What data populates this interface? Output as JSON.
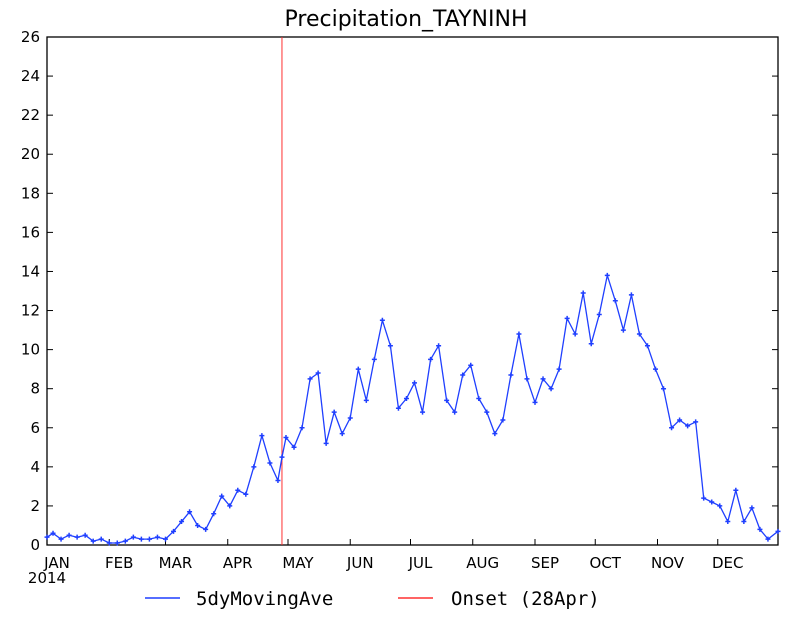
{
  "chart_data": {
    "type": "line",
    "title": "Precipitation_TAYNINH",
    "xlabel": "",
    "ylabel": "",
    "year_label": "2014",
    "x_tick_labels": [
      "JAN",
      "FEB",
      "MAR",
      "APR",
      "MAY",
      "JUN",
      "JUL",
      "AUG",
      "SEP",
      "OCT",
      "NOV",
      "DEC"
    ],
    "y_ticks": [
      0,
      2,
      4,
      6,
      8,
      10,
      12,
      14,
      16,
      18,
      20,
      22,
      24,
      26
    ],
    "ylim": [
      0,
      26
    ],
    "xlim_days": [
      1,
      365
    ],
    "grid": false,
    "legend_position": "bottom",
    "colors": {
      "series": "#1f3fff",
      "onset": "#ff3030"
    },
    "series": [
      {
        "name": "5dyMovingAve",
        "x_day_of_year": [
          1,
          4,
          8,
          12,
          16,
          20,
          24,
          28,
          32,
          36,
          40,
          44,
          48,
          52,
          56,
          60,
          64,
          68,
          72,
          76,
          80,
          84,
          88,
          92,
          96,
          100,
          104,
          108,
          112,
          116,
          118,
          120,
          124,
          128,
          132,
          136,
          140,
          144,
          148,
          152,
          156,
          160,
          164,
          168,
          172,
          176,
          180,
          184,
          188,
          192,
          196,
          200,
          204,
          208,
          212,
          216,
          220,
          224,
          228,
          232,
          236,
          240,
          244,
          248,
          252,
          256,
          260,
          264,
          268,
          272,
          276,
          280,
          284,
          288,
          292,
          296,
          300,
          304,
          308,
          312,
          316,
          320,
          324,
          328,
          332,
          336,
          340,
          344,
          348,
          352,
          356,
          360,
          365
        ],
        "values": [
          0.4,
          0.6,
          0.3,
          0.5,
          0.4,
          0.5,
          0.2,
          0.3,
          0.1,
          0.1,
          0.2,
          0.4,
          0.3,
          0.3,
          0.4,
          0.3,
          0.7,
          1.2,
          1.7,
          1.0,
          0.8,
          1.6,
          2.5,
          2.0,
          2.8,
          2.6,
          4.0,
          5.6,
          4.2,
          3.3,
          4.5,
          5.5,
          5.0,
          6.0,
          8.5,
          8.8,
          5.2,
          6.8,
          5.7,
          6.5,
          9.0,
          7.4,
          9.5,
          11.5,
          10.2,
          7.0,
          7.5,
          8.3,
          6.8,
          9.5,
          10.2,
          7.4,
          6.8,
          8.7,
          9.2,
          7.5,
          6.8,
          5.7,
          6.4,
          8.7,
          10.8,
          8.5,
          7.3,
          8.5,
          8.0,
          9.0,
          11.6,
          10.8,
          12.9,
          10.3,
          11.8,
          13.8,
          12.5,
          11.0,
          12.8,
          10.8,
          10.2,
          9.0,
          8.0,
          6.0,
          6.4,
          6.1,
          6.3,
          2.4,
          2.2,
          2.0,
          1.2,
          2.8,
          1.2,
          1.9,
          0.8,
          0.3,
          0.7
        ]
      }
    ],
    "onset": {
      "name": "Onset (28Apr)",
      "day_of_year": 118
    }
  }
}
